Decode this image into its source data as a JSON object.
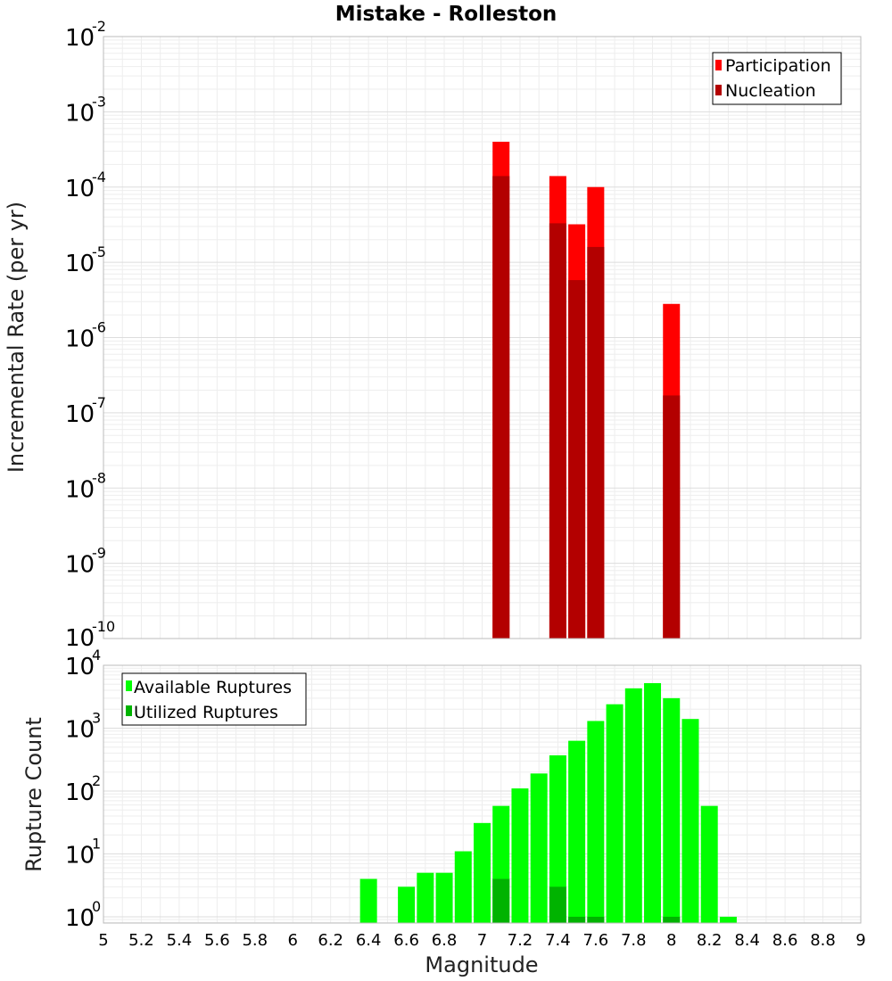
{
  "chart_data": [
    {
      "type": "bar",
      "title": "Mistake - Rolleston",
      "xlabel": "",
      "ylabel": "Incremental Rate (per yr)",
      "yscale": "log",
      "ylim_exp": [
        -10,
        -2
      ],
      "xlim": [
        5,
        9
      ],
      "grid": true,
      "legend_position": "top-right",
      "y_ticks": [
        {
          "base": "10",
          "exp": "-2"
        },
        {
          "base": "10",
          "exp": "-3"
        },
        {
          "base": "10",
          "exp": "-4"
        },
        {
          "base": "10",
          "exp": "-5"
        },
        {
          "base": "10",
          "exp": "-6"
        },
        {
          "base": "10",
          "exp": "-7"
        },
        {
          "base": "10",
          "exp": "-8"
        },
        {
          "base": "10",
          "exp": "-9"
        },
        {
          "base": "10",
          "exp": "-10"
        }
      ],
      "x": [
        7.1,
        7.4,
        7.5,
        7.6,
        8.0
      ],
      "series": [
        {
          "name": "Participation",
          "color": "#ff0000",
          "values": [
            0.0004,
            0.00014,
            3.2e-05,
            0.0001,
            2.8e-06
          ]
        },
        {
          "name": "Nucleation",
          "color": "#b30000",
          "values": [
            0.00014,
            3.3e-05,
            5.8e-06,
            1.6e-05,
            1.7e-07
          ]
        }
      ]
    },
    {
      "type": "bar",
      "title": "",
      "xlabel": "Magnitude",
      "ylabel": "Rupture Count",
      "yscale": "log",
      "ylim_exp": [
        -0.1,
        4
      ],
      "xlim": [
        5,
        9
      ],
      "grid": true,
      "legend_position": "top-left",
      "y_ticks": [
        {
          "base": "10",
          "exp": "4"
        },
        {
          "base": "10",
          "exp": "3"
        },
        {
          "base": "10",
          "exp": "2"
        },
        {
          "base": "10",
          "exp": "1"
        },
        {
          "base": "10",
          "exp": "0"
        }
      ],
      "x_ticks": [
        "5",
        "5.2",
        "5.4",
        "5.6",
        "5.8",
        "6",
        "6.2",
        "6.4",
        "6.6",
        "6.8",
        "7",
        "7.2",
        "7.4",
        "7.6",
        "7.8",
        "8",
        "8.2",
        "8.4",
        "8.6",
        "8.8",
        "9"
      ],
      "series": [
        {
          "name": "Available Ruptures",
          "color": "#00ff00",
          "x": [
            6.4,
            6.6,
            6.7,
            6.8,
            6.9,
            7.0,
            7.1,
            7.2,
            7.3,
            7.4,
            7.5,
            7.6,
            7.7,
            7.8,
            7.9,
            8.0,
            8.1,
            8.2,
            8.3
          ],
          "values": [
            4,
            3,
            5,
            5,
            11,
            31,
            58,
            110,
            190,
            370,
            630,
            1300,
            2400,
            4300,
            5200,
            3000,
            1400,
            58,
            1
          ]
        },
        {
          "name": "Utilized Ruptures",
          "color": "#00b300",
          "x": [
            7.1,
            7.4,
            7.5,
            7.6,
            8.0
          ],
          "values": [
            4,
            3,
            1,
            1,
            1
          ]
        }
      ]
    }
  ]
}
